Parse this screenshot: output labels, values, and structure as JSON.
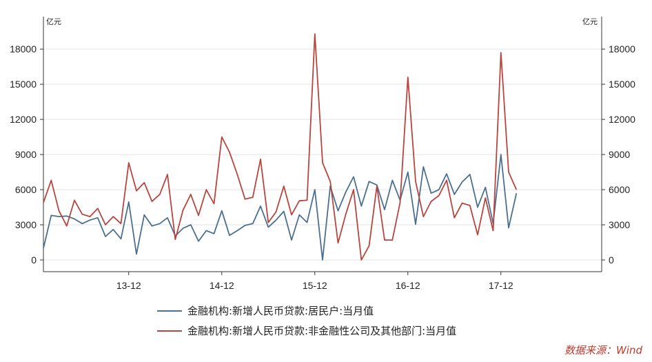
{
  "chart_data": {
    "type": "line",
    "unit_left": "亿元",
    "unit_right": "亿元",
    "ylim": [
      -1000,
      19600
    ],
    "yticks": [
      0,
      3000,
      6000,
      9000,
      12000,
      15000,
      18000
    ],
    "ytick_labels": [
      "0",
      "3000",
      "6000",
      "9000",
      "12000",
      "15000",
      "18000"
    ],
    "xlim": [
      0,
      72
    ],
    "x_ticks": [
      {
        "index": 11,
        "label": "13-12"
      },
      {
        "index": 23,
        "label": "14-12"
      },
      {
        "index": 35,
        "label": "15-12"
      },
      {
        "index": 47,
        "label": "16-12"
      },
      {
        "index": 59,
        "label": "17-12"
      }
    ],
    "series": [
      {
        "name": "金融机构:新增人民币贷款:居民户:当月值",
        "color": "#4a6f8f",
        "values": [
          1000,
          3800,
          3700,
          3750,
          3500,
          3100,
          3400,
          3600,
          2000,
          2600,
          1800,
          4950,
          500,
          3850,
          2900,
          3100,
          3600,
          2050,
          2700,
          3000,
          1600,
          2500,
          2250,
          4200,
          2100,
          2500,
          2950,
          3100,
          4600,
          2800,
          3400,
          4150,
          1700,
          3850,
          3200,
          6000,
          0,
          6300,
          4200,
          5800,
          7100,
          4600,
          6700,
          6400,
          4300,
          6800,
          5100,
          7500,
          3050,
          7950,
          5700,
          6000,
          7350,
          5600,
          6650,
          7300,
          4500,
          6200,
          3100,
          9000,
          2750,
          5700
        ]
      },
      {
        "name": "金融机构:新增人民币贷款:非金融性公司及其他部门:当月值",
        "color": "#b8443d",
        "values": [
          4900,
          6800,
          4200,
          2900,
          5100,
          3900,
          3700,
          4400,
          3000,
          3700,
          3100,
          8300,
          5900,
          6600,
          5000,
          5600,
          7300,
          1750,
          4250,
          5600,
          3800,
          6000,
          4800,
          10500,
          9200,
          7300,
          5200,
          5350,
          8600,
          3200,
          4100,
          6300,
          3850,
          5050,
          5100,
          19300,
          8300,
          6700,
          1450,
          3900,
          6000,
          0,
          1200,
          6300,
          1700,
          1700,
          4900,
          15600,
          6700,
          3700,
          5000,
          5500,
          6800,
          3600,
          4850,
          4650,
          2150,
          5300,
          2500,
          17700,
          7500,
          6000
        ]
      }
    ]
  },
  "source_label": "数据来源：Wind"
}
